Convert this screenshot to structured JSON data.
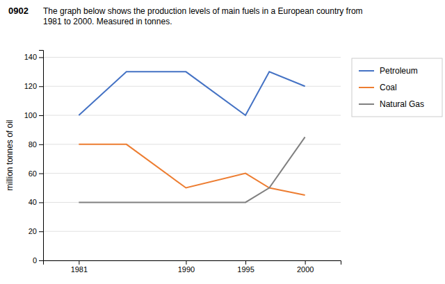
{
  "chart_data": {
    "type": "line",
    "title": "0902",
    "subtitle": "The graph below shows the production levels of main fuels in a European country from\n1981 to 2000. Measured in tonnes.",
    "y_label": "million tonnes of oil",
    "x": [
      1981,
      1985,
      1990,
      1995,
      1997,
      2000
    ],
    "series": [
      {
        "name": "Petroleum",
        "color": "#4472C4",
        "values": [
          100,
          130,
          130,
          100,
          130,
          120
        ]
      },
      {
        "name": "Coal",
        "color": "#ED7D31",
        "values": [
          80,
          80,
          50,
          60,
          50,
          45
        ]
      },
      {
        "name": "Natural Gas",
        "color": "#808080",
        "values": [
          40,
          40,
          40,
          40,
          50,
          85
        ]
      }
    ],
    "xlim": [
      1978,
      2003
    ],
    "xticks": [
      1981,
      1990,
      1995,
      2000
    ],
    "ylim": [
      0,
      145
    ],
    "yticks": [
      0,
      20,
      40,
      60,
      80,
      100,
      120,
      140
    ],
    "grid": true,
    "legend": "right"
  }
}
